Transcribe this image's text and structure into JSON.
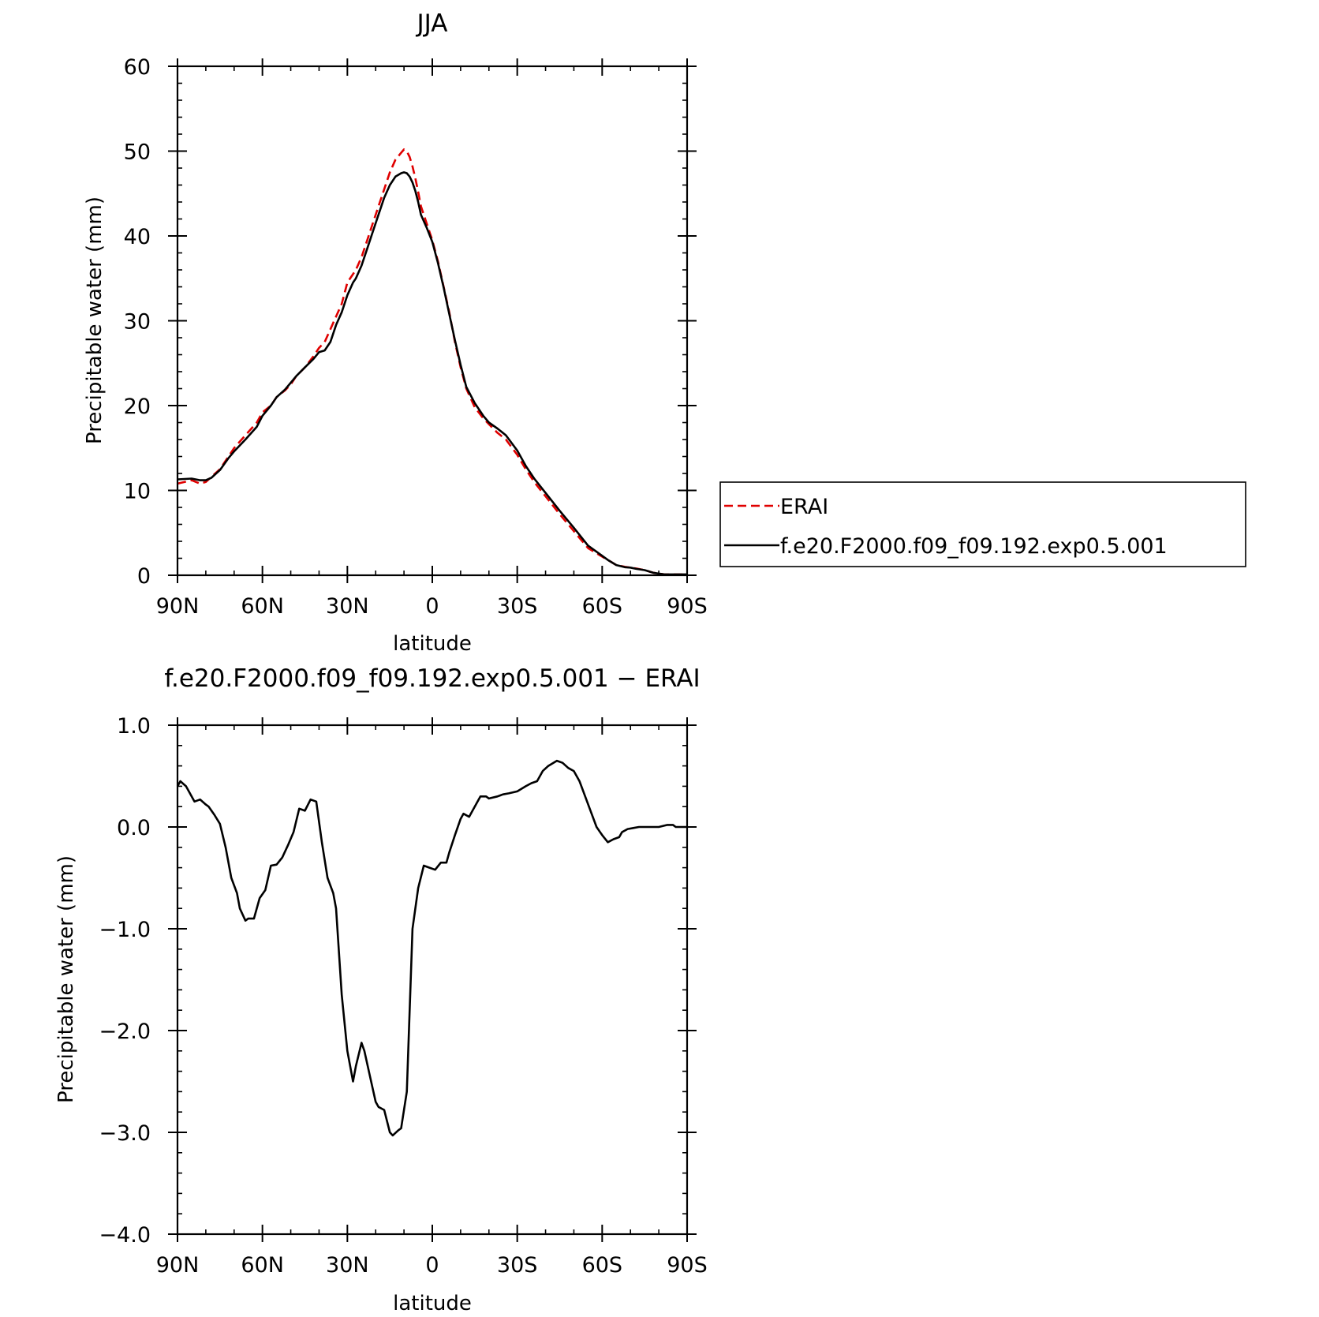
{
  "chart_data": [
    {
      "type": "line",
      "title": "JJA",
      "xlabel": "latitude",
      "ylabel": "Precipitable water (mm)",
      "xlim": [
        90,
        -90
      ],
      "ylim": [
        0,
        60
      ],
      "x_ticks": [
        90,
        60,
        30,
        0,
        -30,
        -60,
        -90
      ],
      "x_tick_labels": [
        "90N",
        "60N",
        "30N",
        "0",
        "30S",
        "60S",
        "90S"
      ],
      "y_ticks": [
        0,
        10,
        20,
        30,
        40,
        50,
        60
      ],
      "y_tick_labels": [
        "0",
        "10",
        "20",
        "30",
        "40",
        "50",
        "60"
      ],
      "legend_position": "right",
      "series": [
        {
          "name": "ERAI",
          "color": "#e00000",
          "dash": true,
          "x": [
            90,
            85,
            82,
            80,
            78,
            75,
            72,
            70,
            66,
            62,
            60,
            57,
            55,
            52,
            50,
            48,
            45,
            42,
            40,
            38,
            36,
            34,
            32,
            30,
            28,
            27,
            25,
            23,
            21,
            19,
            17,
            15,
            13,
            11,
            10,
            9,
            8,
            7,
            6,
            5,
            4,
            2,
            0,
            -2,
            -4,
            -6,
            -8,
            -10,
            -12,
            -15,
            -18,
            -20,
            -23,
            -26,
            -30,
            -33,
            -36,
            -40,
            -45,
            -50,
            -55,
            -60,
            -62,
            -65,
            -68,
            -70,
            -72,
            -75,
            -78,
            -80,
            -82,
            -85,
            -88,
            -90
          ],
          "y": [
            10.8,
            11.2,
            10.8,
            11.0,
            11.6,
            12.5,
            14.0,
            15.0,
            16.5,
            18.0,
            19.2,
            20.0,
            21.0,
            21.8,
            22.5,
            23.5,
            24.5,
            25.8,
            26.8,
            27.5,
            29.0,
            30.5,
            32.0,
            34.5,
            35.5,
            36.0,
            37.5,
            39.5,
            41.5,
            43.5,
            45.5,
            47.5,
            49.0,
            49.8,
            50.2,
            50.0,
            49.3,
            48.2,
            46.8,
            45.2,
            43.5,
            41.5,
            39.5,
            37.0,
            34.0,
            31.0,
            27.5,
            24.5,
            22.0,
            19.8,
            18.5,
            17.8,
            16.8,
            16.0,
            14.2,
            12.5,
            11.0,
            9.3,
            7.2,
            5.2,
            3.2,
            2.2,
            1.8,
            1.2,
            1.0,
            0.9,
            0.8,
            0.6,
            0.3,
            0.2,
            0.1,
            0.1,
            0.1,
            0.1
          ]
        },
        {
          "name": "f.e20.F2000.f09_f09.192.exp0.5.001",
          "color": "#000000",
          "dash": false,
          "x": [
            90,
            85,
            82,
            80,
            78,
            75,
            72,
            70,
            66,
            62,
            60,
            57,
            55,
            52,
            50,
            48,
            45,
            42,
            40,
            38,
            36,
            34,
            32,
            30,
            28,
            27,
            25,
            23,
            21,
            19,
            17,
            15,
            13,
            11,
            10,
            9,
            8,
            7,
            6,
            5,
            4,
            2,
            0,
            -2,
            -4,
            -6,
            -8,
            -10,
            -12,
            -15,
            -18,
            -20,
            -23,
            -26,
            -30,
            -33,
            -36,
            -40,
            -45,
            -50,
            -55,
            -60,
            -62,
            -65,
            -68,
            -70,
            -72,
            -75,
            -78,
            -80,
            -82,
            -85,
            -88,
            -90
          ],
          "y": [
            11.3,
            11.4,
            11.2,
            11.2,
            11.5,
            12.4,
            13.8,
            14.6,
            16.0,
            17.5,
            18.8,
            20.0,
            21.0,
            21.9,
            22.7,
            23.5,
            24.5,
            25.5,
            26.3,
            26.5,
            27.5,
            29.5,
            31.0,
            33.0,
            34.5,
            35.0,
            36.5,
            38.5,
            40.5,
            42.5,
            44.5,
            46.0,
            47.0,
            47.4,
            47.5,
            47.4,
            47.0,
            46.3,
            45.3,
            44.0,
            42.5,
            41.0,
            39.3,
            36.8,
            33.9,
            30.8,
            27.7,
            24.8,
            22.2,
            20.3,
            18.8,
            18.0,
            17.3,
            16.5,
            14.7,
            12.9,
            11.4,
            9.7,
            7.6,
            5.6,
            3.5,
            2.3,
            1.8,
            1.2,
            0.95,
            0.9,
            0.75,
            0.6,
            0.3,
            0.2,
            0.1,
            0.1,
            0.1,
            0.1
          ]
        }
      ]
    },
    {
      "type": "line",
      "title": "f.e20.F2000.f09_f09.192.exp0.5.001 − ERAI",
      "xlabel": "latitude",
      "ylabel": "Precipitable water (mm)",
      "xlim": [
        90,
        -90
      ],
      "ylim": [
        -4.0,
        1.0
      ],
      "x_ticks": [
        90,
        60,
        30,
        0,
        -30,
        -60,
        -90
      ],
      "x_tick_labels": [
        "90N",
        "60N",
        "30N",
        "0",
        "30S",
        "60S",
        "90S"
      ],
      "y_ticks": [
        1.0,
        0.0,
        -1.0,
        -2.0,
        -3.0,
        -4.0
      ],
      "y_tick_labels": [
        "1.0",
        "0.0",
        "−1.0",
        "−2.0",
        "−3.0",
        "−4.0"
      ],
      "series": [
        {
          "name": "f.e20.F2000.f09_f09.192.exp0.5.001 − ERAI",
          "color": "#000000",
          "dash": false,
          "x": [
            90,
            89,
            87,
            86,
            84,
            82,
            80,
            79,
            77,
            75,
            73,
            71,
            69,
            68,
            66,
            65,
            63,
            61,
            59,
            57,
            55,
            53,
            51,
            49,
            47,
            45,
            43,
            41,
            39,
            37,
            35,
            34,
            32,
            30,
            28,
            27,
            25,
            24,
            22,
            20,
            19,
            17,
            15,
            14,
            12,
            11,
            9,
            7,
            5,
            3,
            1,
            -1,
            -3,
            -5,
            -6,
            -8,
            -10,
            -11,
            -13,
            -15,
            -17,
            -19,
            -20,
            -23,
            -25,
            -27,
            -30,
            -33,
            -35,
            -37,
            -39,
            -41,
            -44,
            -46,
            -48,
            -50,
            -52,
            -54,
            -56,
            -58,
            -60,
            -62,
            -64,
            -66,
            -67,
            -69,
            -71,
            -73,
            -76,
            -78,
            -80,
            -83,
            -85,
            -86,
            -88,
            -90
          ],
          "y": [
            0.4,
            0.45,
            0.4,
            0.35,
            0.25,
            0.27,
            0.22,
            0.2,
            0.12,
            0.03,
            -0.2,
            -0.5,
            -0.65,
            -0.8,
            -0.92,
            -0.9,
            -0.9,
            -0.7,
            -0.62,
            -0.38,
            -0.37,
            -0.3,
            -0.18,
            -0.05,
            0.18,
            0.16,
            0.27,
            0.25,
            -0.15,
            -0.5,
            -0.65,
            -0.8,
            -1.65,
            -2.2,
            -2.5,
            -2.35,
            -2.12,
            -2.2,
            -2.45,
            -2.7,
            -2.75,
            -2.78,
            -3.0,
            -3.03,
            -2.98,
            -2.96,
            -2.6,
            -1.0,
            -0.6,
            -0.38,
            -0.4,
            -0.42,
            -0.35,
            -0.35,
            -0.25,
            -0.08,
            0.08,
            0.13,
            0.1,
            0.2,
            0.3,
            0.3,
            0.28,
            0.3,
            0.32,
            0.33,
            0.35,
            0.4,
            0.43,
            0.45,
            0.55,
            0.6,
            0.65,
            0.63,
            0.58,
            0.55,
            0.45,
            0.3,
            0.15,
            0.0,
            -0.08,
            -0.15,
            -0.12,
            -0.1,
            -0.05,
            -0.02,
            -0.01,
            0.0,
            0.0,
            0.0,
            0.0,
            0.02,
            0.02,
            0.0,
            0.0,
            0.0
          ]
        }
      ]
    }
  ]
}
